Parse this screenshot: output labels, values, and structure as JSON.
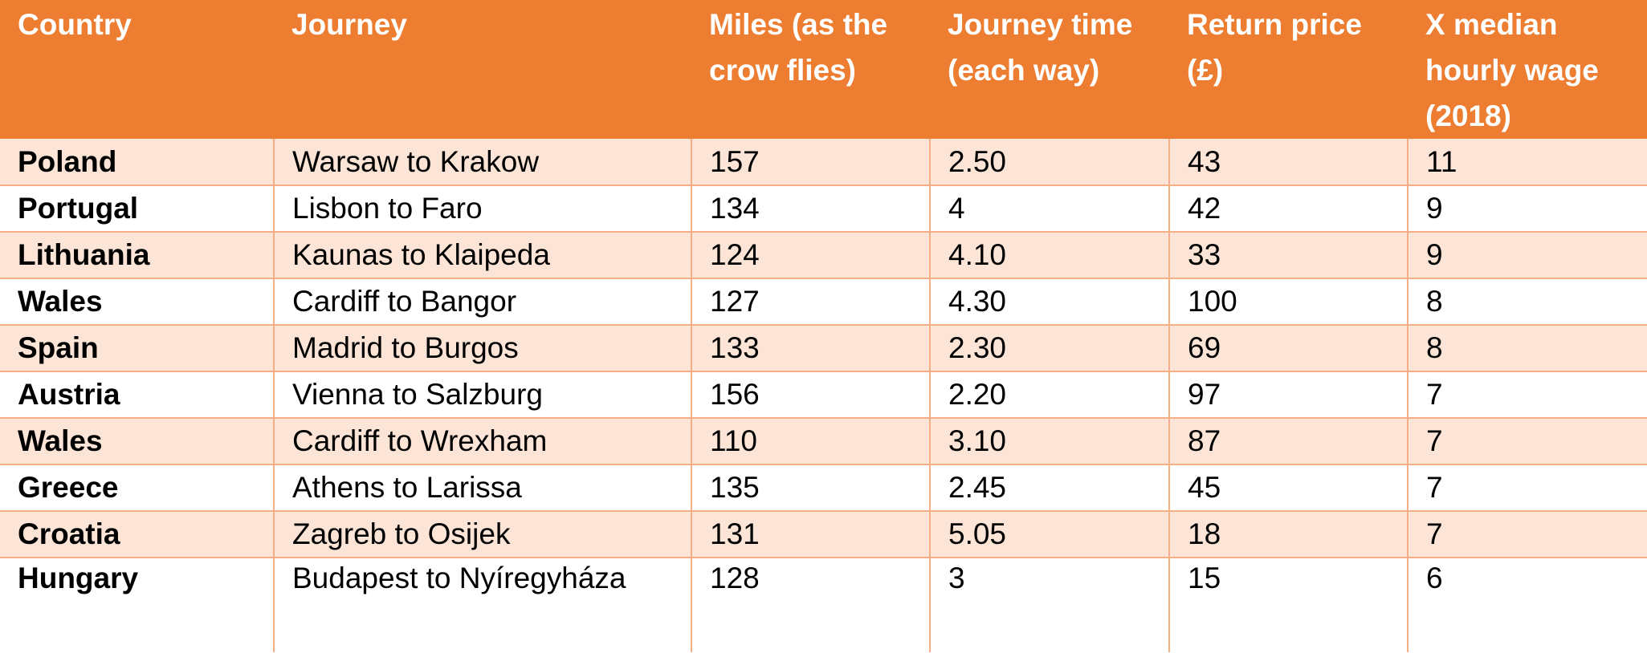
{
  "table": {
    "headers": [
      "Country",
      "Journey",
      "Miles (as the crow flies)",
      "Journey time (each way)",
      "Return price (£)",
      "X median hourly wage (2018)"
    ],
    "rows": [
      [
        "Poland",
        "Warsaw to Krakow",
        "157",
        "2.50",
        "43",
        "11"
      ],
      [
        "Portugal",
        "Lisbon to Faro",
        "134",
        "4",
        "42",
        "9"
      ],
      [
        "Lithuania",
        "Kaunas to Klaipeda",
        "124",
        "4.10",
        "33",
        "9"
      ],
      [
        "Wales",
        "Cardiff to Bangor",
        "127",
        "4.30",
        "100",
        "8"
      ],
      [
        "Spain",
        "Madrid to Burgos",
        "133",
        "2.30",
        "69",
        "8"
      ],
      [
        "Austria",
        "Vienna to Salzburg",
        "156",
        "2.20",
        "97",
        "7"
      ],
      [
        "Wales",
        "Cardiff to Wrexham",
        "110",
        "3.10",
        "87",
        "7"
      ],
      [
        "Greece",
        "Athens to Larissa",
        "135",
        "2.45",
        "45",
        "7"
      ],
      [
        "Croatia",
        "Zagreb to Osijek",
        "131",
        "5.05",
        "18",
        "7"
      ],
      [
        "Hungary",
        "Budapest to Nyíregyháza",
        "128",
        "3",
        "15",
        "6"
      ]
    ]
  },
  "colors": {
    "header_bg": "#ed7d31",
    "band_bg": "#fce4d6",
    "grid": "#f4b084"
  }
}
